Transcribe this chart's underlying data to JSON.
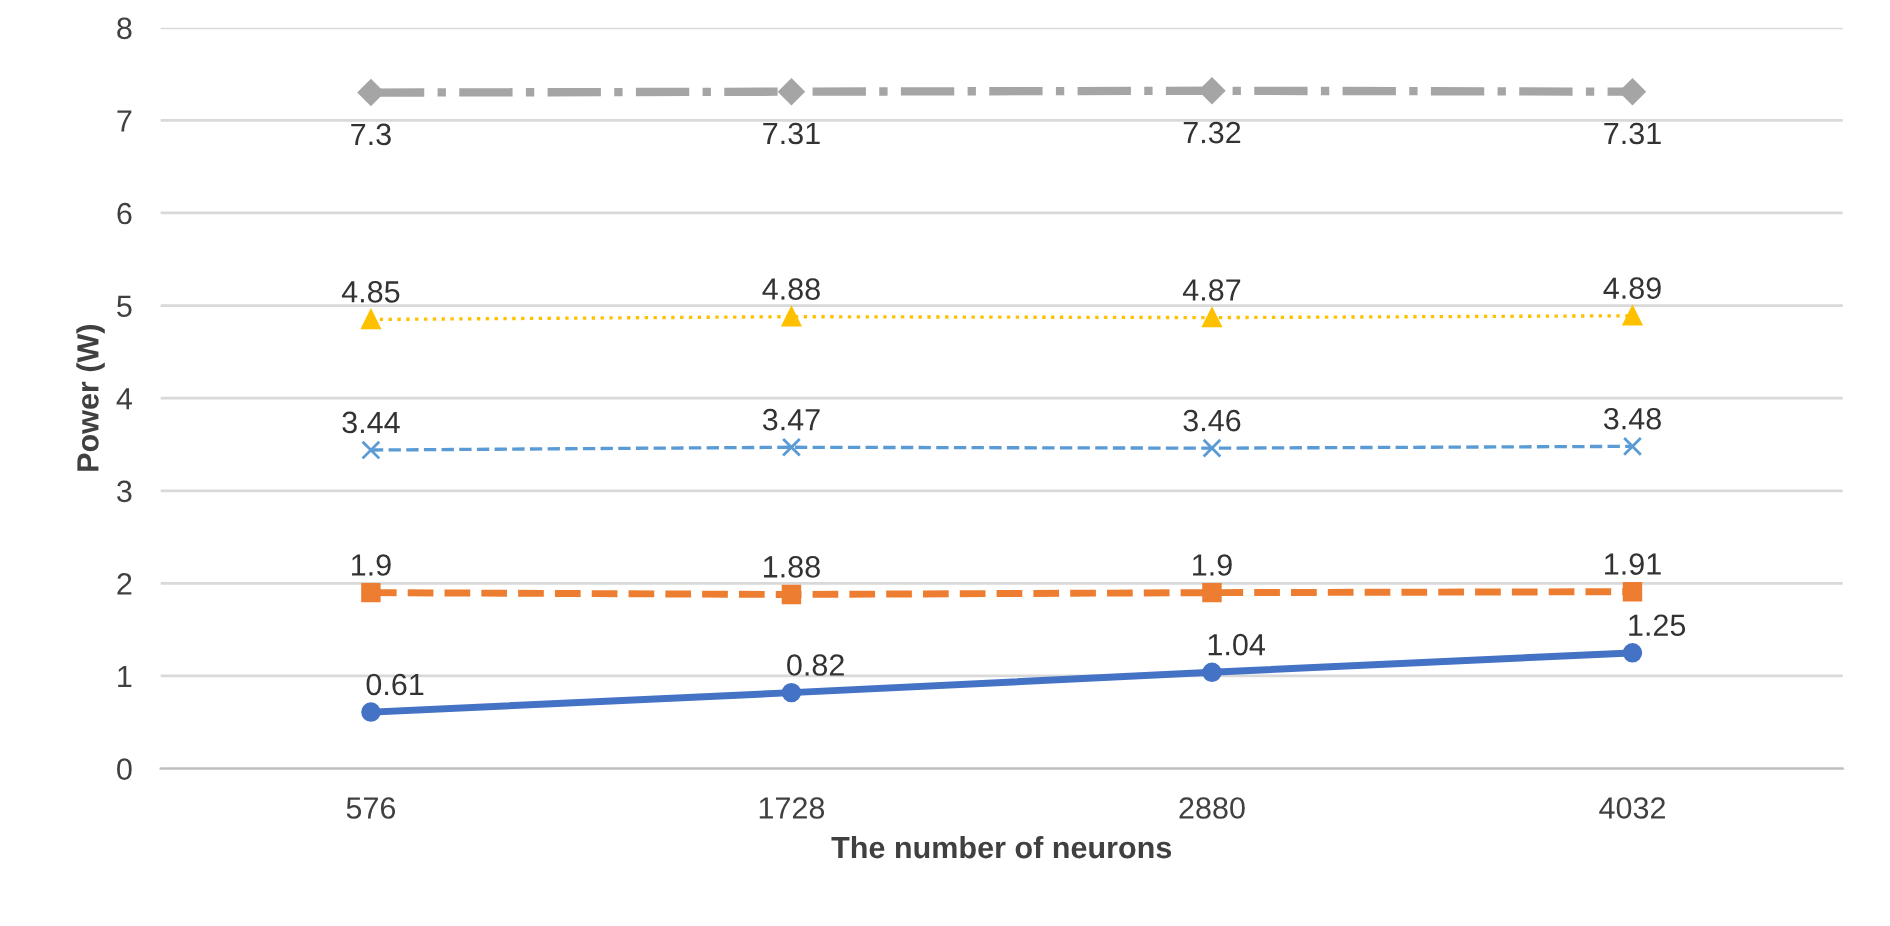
{
  "chart_data": {
    "type": "line",
    "xlabel": "The number of neurons",
    "ylabel": "Power (W)",
    "categories": [
      "576",
      "1728",
      "2880",
      "4032"
    ],
    "series": [
      {
        "color": "#4472c4",
        "marker": "circle",
        "line_style": "solid",
        "values": [
          0.61,
          0.82,
          1.04,
          1.25
        ]
      },
      {
        "color": "#ed7d31",
        "marker": "square",
        "line_style": "dashed",
        "values": [
          1.9,
          1.88,
          1.9,
          1.91
        ]
      },
      {
        "color": "#5b9bd5",
        "marker": "cross",
        "line_style": "dashed",
        "values": [
          3.44,
          3.47,
          3.46,
          3.48
        ]
      },
      {
        "color": "#ffc000",
        "marker": "triangle",
        "line_style": "dotted",
        "values": [
          4.85,
          4.88,
          4.87,
          4.89
        ]
      },
      {
        "color": "#a5a5a5",
        "marker": "diamond",
        "line_style": "dashdot",
        "values": [
          7.3,
          7.31,
          7.32,
          7.31
        ]
      }
    ],
    "ylim": [
      0,
      8
    ],
    "yticks": [
      0,
      1,
      2,
      3,
      4,
      5,
      6,
      7,
      8
    ],
    "grid": "y",
    "data_labels": true
  }
}
